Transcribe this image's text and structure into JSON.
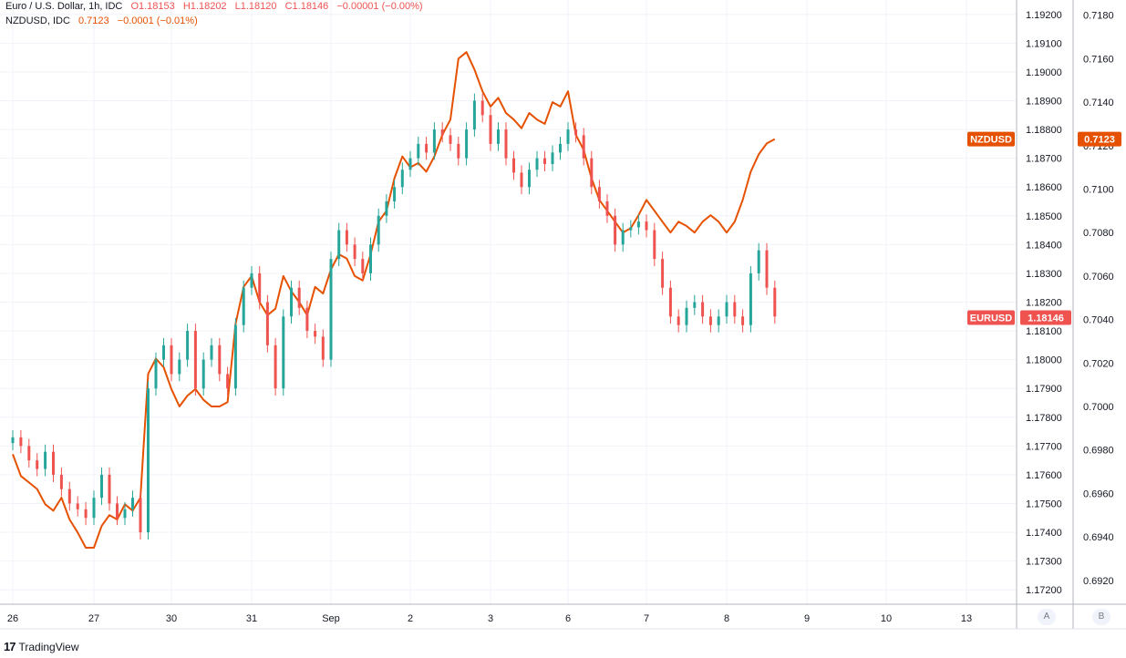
{
  "legend": {
    "eurusd": {
      "name": "Euro / U.S. Dollar, 1h, IDC",
      "open": "O1.18153",
      "high": "H1.18202",
      "low": "L1.18120",
      "close": "C1.18146",
      "change": "−0.00001 (−0.00%)"
    },
    "nzdusd": {
      "name": "NZDUSD, IDC",
      "price": "0.7123",
      "change": "−0.0001 (−0.01%)"
    }
  },
  "colors": {
    "up": "#26a69a",
    "down": "#ef5350",
    "nzd_line": "#e65100",
    "grid": "#f0f3fa",
    "axis_text": "#131722"
  },
  "axis_buttons": {
    "a": "A",
    "b": "B"
  },
  "brand": {
    "mark": "17",
    "name": "TradingView"
  },
  "chart_data": {
    "type": "line",
    "title": "",
    "x_tick_labels": [
      "26",
      "27",
      "30",
      "31",
      "Sep",
      "2",
      "3",
      "6",
      "7",
      "8",
      "9",
      "10",
      "13"
    ],
    "right_axis_eurusd": {
      "ticks": [
        "1.19200",
        "1.19100",
        "1.19000",
        "1.18900",
        "1.18800",
        "1.18700",
        "1.18600",
        "1.18500",
        "1.18400",
        "1.18300",
        "1.18200",
        "1.18100",
        "1.18000",
        "1.17900",
        "1.17800",
        "1.17700",
        "1.17600",
        "1.17500",
        "1.17400",
        "1.17300",
        "1.17200"
      ],
      "range": [
        1.1715,
        1.1925
      ]
    },
    "right_axis_nzdusd": {
      "ticks": [
        "0.7180",
        "0.7160",
        "0.7140",
        "0.7120",
        "0.7100",
        "0.7080",
        "0.7060",
        "0.7040",
        "0.7020",
        "0.7000",
        "0.6980",
        "0.6960",
        "0.6940",
        "0.6920"
      ],
      "range": [
        0.6909,
        0.7187
      ]
    },
    "price_labels": {
      "nzdusd": {
        "name": "NZDUSD",
        "value": "0.7123"
      },
      "eurusd": {
        "name": "EURUSD",
        "value": "1.18146"
      }
    },
    "series": [
      {
        "name": "EURUSD",
        "kind": "candlestick",
        "x": [
          0,
          0.1,
          0.2,
          0.3,
          0.4,
          0.5,
          0.6,
          0.7,
          0.8,
          0.9,
          1.0,
          1.1,
          1.2,
          1.3,
          1.4,
          1.5,
          1.6,
          1.7,
          1.8,
          1.9,
          2.0,
          2.1,
          2.2,
          2.3,
          2.4,
          2.5,
          2.6,
          2.7,
          2.8,
          2.9,
          3.0,
          3.1,
          3.2,
          3.3,
          3.4,
          3.5,
          3.6,
          3.7,
          3.8,
          3.9,
          4.0,
          4.1,
          4.2,
          4.3,
          4.4,
          4.5,
          4.6,
          4.7,
          4.8,
          4.9,
          5.0,
          5.1,
          5.2,
          5.3,
          5.4,
          5.5,
          5.6,
          5.7,
          5.8,
          5.9,
          6.0,
          6.1,
          6.2,
          6.3,
          6.4,
          6.5,
          6.6,
          6.7,
          6.8,
          6.9,
          7.0,
          7.1,
          7.2,
          7.3,
          7.4,
          7.5,
          7.6,
          7.7,
          7.8,
          7.9,
          8.0,
          8.1,
          8.2,
          8.3,
          8.4,
          8.5,
          8.6,
          8.7,
          8.8,
          8.9,
          9.0,
          9.1,
          9.2,
          9.3,
          9.4,
          9.5,
          9.6
        ],
        "close": [
          1.1773,
          1.177,
          1.1765,
          1.1762,
          1.1768,
          1.176,
          1.1755,
          1.175,
          1.1748,
          1.1745,
          1.1752,
          1.176,
          1.175,
          1.1745,
          1.1748,
          1.1752,
          1.174,
          1.179,
          1.18,
          1.1805,
          1.1795,
          1.18,
          1.181,
          1.179,
          1.18,
          1.1805,
          1.1795,
          1.179,
          1.1812,
          1.1825,
          1.183,
          1.182,
          1.1805,
          1.179,
          1.1815,
          1.1825,
          1.1818,
          1.181,
          1.1808,
          1.18,
          1.1835,
          1.1845,
          1.184,
          1.1835,
          1.183,
          1.184,
          1.185,
          1.1855,
          1.186,
          1.1866,
          1.187,
          1.1875,
          1.1872,
          1.188,
          1.1878,
          1.1875,
          1.187,
          1.188,
          1.189,
          1.1885,
          1.1875,
          1.188,
          1.187,
          1.1865,
          1.186,
          1.1866,
          1.187,
          1.1868,
          1.1872,
          1.1875,
          1.188,
          1.1878,
          1.187,
          1.186,
          1.1855,
          1.185,
          1.184,
          1.1845,
          1.1846,
          1.1848,
          1.1845,
          1.1835,
          1.1825,
          1.1815,
          1.1812,
          1.1818,
          1.182,
          1.1815,
          1.1812,
          1.1815,
          1.182,
          1.1815,
          1.1812,
          1.183,
          1.1838,
          1.1825,
          1.1815
        ]
      },
      {
        "name": "NZDUSD",
        "kind": "line",
        "x": [
          0,
          0.1,
          0.2,
          0.3,
          0.4,
          0.5,
          0.6,
          0.7,
          0.8,
          0.9,
          1.0,
          1.1,
          1.2,
          1.3,
          1.4,
          1.5,
          1.6,
          1.7,
          1.8,
          1.9,
          2.0,
          2.1,
          2.2,
          2.3,
          2.4,
          2.5,
          2.6,
          2.7,
          2.8,
          2.9,
          3.0,
          3.1,
          3.2,
          3.3,
          3.4,
          3.5,
          3.6,
          3.7,
          3.8,
          3.9,
          4.0,
          4.1,
          4.2,
          4.3,
          4.4,
          4.5,
          4.6,
          4.7,
          4.8,
          4.9,
          5.0,
          5.1,
          5.2,
          5.3,
          5.4,
          5.5,
          5.6,
          5.7,
          5.8,
          5.9,
          6.0,
          6.1,
          6.2,
          6.3,
          6.4,
          6.5,
          6.6,
          6.7,
          6.8,
          6.9,
          7.0,
          7.1,
          7.2,
          7.3,
          7.4,
          7.5,
          7.6,
          7.7,
          7.8,
          7.9,
          8.0,
          8.1,
          8.2,
          8.3,
          8.4,
          8.5,
          8.6,
          8.7,
          8.8,
          8.9,
          9.0,
          9.1,
          9.2,
          9.3,
          9.4,
          9.5,
          9.6
        ],
        "y": [
          0.6978,
          0.6968,
          0.6965,
          0.6962,
          0.6955,
          0.6952,
          0.6958,
          0.6948,
          0.6942,
          0.6935,
          0.6935,
          0.6945,
          0.695,
          0.6948,
          0.6955,
          0.6952,
          0.6958,
          0.7015,
          0.7022,
          0.7018,
          0.7008,
          0.7,
          0.7005,
          0.7008,
          0.7003,
          0.7,
          0.7,
          0.7002,
          0.7038,
          0.7055,
          0.706,
          0.7048,
          0.7042,
          0.7045,
          0.706,
          0.7053,
          0.7048,
          0.7042,
          0.7055,
          0.7052,
          0.7063,
          0.707,
          0.7068,
          0.706,
          0.7058,
          0.707,
          0.7085,
          0.709,
          0.7105,
          0.7115,
          0.711,
          0.7112,
          0.7108,
          0.7115,
          0.7125,
          0.7132,
          0.716,
          0.7163,
          0.7155,
          0.7145,
          0.7138,
          0.7142,
          0.7135,
          0.7132,
          0.7128,
          0.7135,
          0.7132,
          0.713,
          0.714,
          0.7138,
          0.7145,
          0.7125,
          0.7118,
          0.7105,
          0.7095,
          0.709,
          0.7085,
          0.708,
          0.7082,
          0.7088,
          0.7095,
          0.709,
          0.7085,
          0.708,
          0.7085,
          0.7083,
          0.708,
          0.7085,
          0.7088,
          0.7085,
          0.708,
          0.7085,
          0.7095,
          0.7108,
          0.7116,
          0.7121,
          0.7123
        ]
      }
    ]
  }
}
